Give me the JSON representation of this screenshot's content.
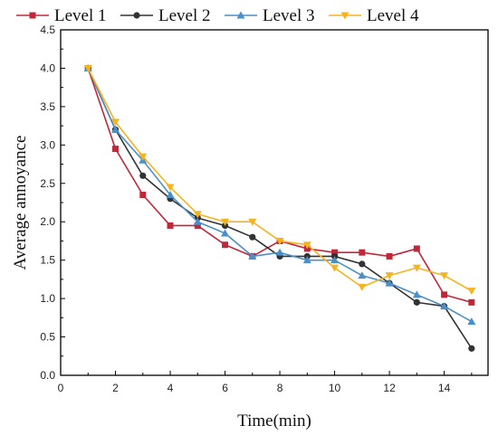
{
  "chart_data": {
    "type": "line",
    "title": "",
    "xlabel": "Time(min)",
    "ylabel": "Average annoyance",
    "xlim": [
      0,
      15.6
    ],
    "ylim": [
      0,
      4.5
    ],
    "x_ticks": [
      0,
      2,
      4,
      6,
      8,
      10,
      12,
      14
    ],
    "y_ticks": [
      0.0,
      0.5,
      1.0,
      1.5,
      2.0,
      2.5,
      3.0,
      3.5,
      4.0,
      4.5
    ],
    "x_tick_labels": [
      "0",
      "2",
      "4",
      "6",
      "8",
      "10",
      "12",
      "14"
    ],
    "y_tick_labels": [
      "0.0",
      "0.5",
      "1.0",
      "1.5",
      "2.0",
      "2.5",
      "3.0",
      "3.5",
      "4.0",
      "4.5"
    ],
    "grid": false,
    "legend_position": "top",
    "x": [
      1,
      2,
      3,
      4,
      5,
      6,
      7,
      8,
      9,
      10,
      11,
      12,
      13,
      14,
      15
    ],
    "series": [
      {
        "name": "Level 1",
        "color": "#c0283a",
        "marker": "square",
        "values": [
          4.0,
          2.95,
          2.35,
          1.95,
          1.95,
          1.7,
          1.55,
          1.75,
          1.65,
          1.6,
          1.6,
          1.55,
          1.65,
          1.05,
          0.95
        ]
      },
      {
        "name": "Level 2",
        "color": "#333333",
        "marker": "circle",
        "values": [
          4.0,
          3.2,
          2.6,
          2.3,
          2.05,
          1.95,
          1.8,
          1.55,
          1.55,
          1.55,
          1.45,
          1.2,
          0.95,
          0.9,
          0.35
        ]
      },
      {
        "name": "Level 3",
        "color": "#4a8fc7",
        "marker": "triangle-up",
        "values": [
          4.0,
          3.2,
          2.8,
          2.35,
          2.0,
          1.85,
          1.55,
          1.6,
          1.5,
          1.5,
          1.3,
          1.2,
          1.05,
          0.9,
          0.7
        ]
      },
      {
        "name": "Level 4",
        "color": "#f5b41e",
        "marker": "triangle-down",
        "values": [
          4.0,
          3.3,
          2.85,
          2.45,
          2.1,
          2.0,
          2.0,
          1.75,
          1.7,
          1.4,
          1.15,
          1.3,
          1.4,
          1.3,
          1.1
        ]
      }
    ]
  }
}
